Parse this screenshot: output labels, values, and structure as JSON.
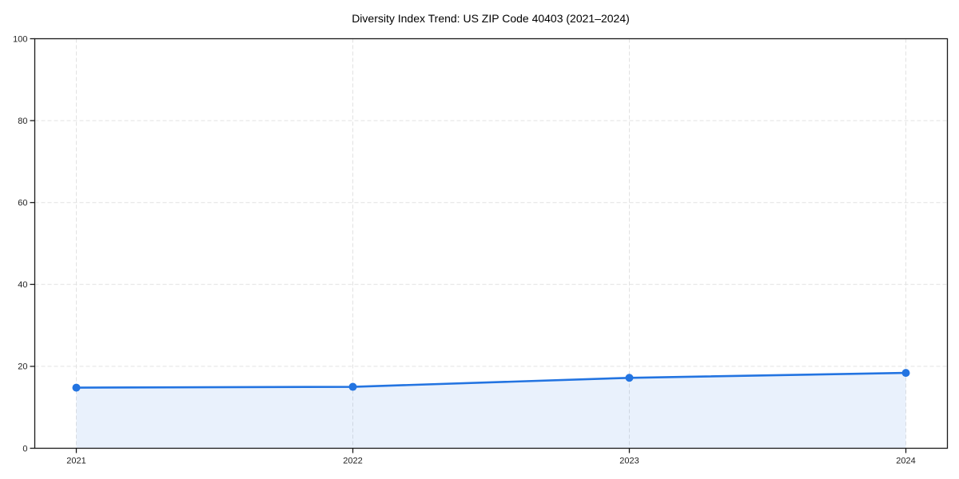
{
  "chart_data": {
    "type": "area",
    "title": "Diversity Index Trend: US ZIP Code 40403 (2021–2024)",
    "categories": [
      "2021",
      "2022",
      "2023",
      "2024"
    ],
    "values": [
      14.8,
      15.0,
      17.2,
      18.4
    ],
    "series_name": "Diversity Index",
    "xlabel": "",
    "ylabel": "",
    "ylim": [
      0,
      100
    ],
    "yticks": [
      0,
      20,
      40,
      60,
      80,
      100
    ],
    "grid": true,
    "grid_style": "dashed",
    "legend": "none",
    "marker": "circle",
    "colors": {
      "line": "#2374e1",
      "marker": "#2374e1",
      "fill": "#2374e1",
      "fill_opacity": 0.1,
      "grid": "#e2e2e2",
      "axis": "#1a1a1a",
      "tick_label": "#222222",
      "title": "#000000",
      "background": "#ffffff"
    }
  }
}
